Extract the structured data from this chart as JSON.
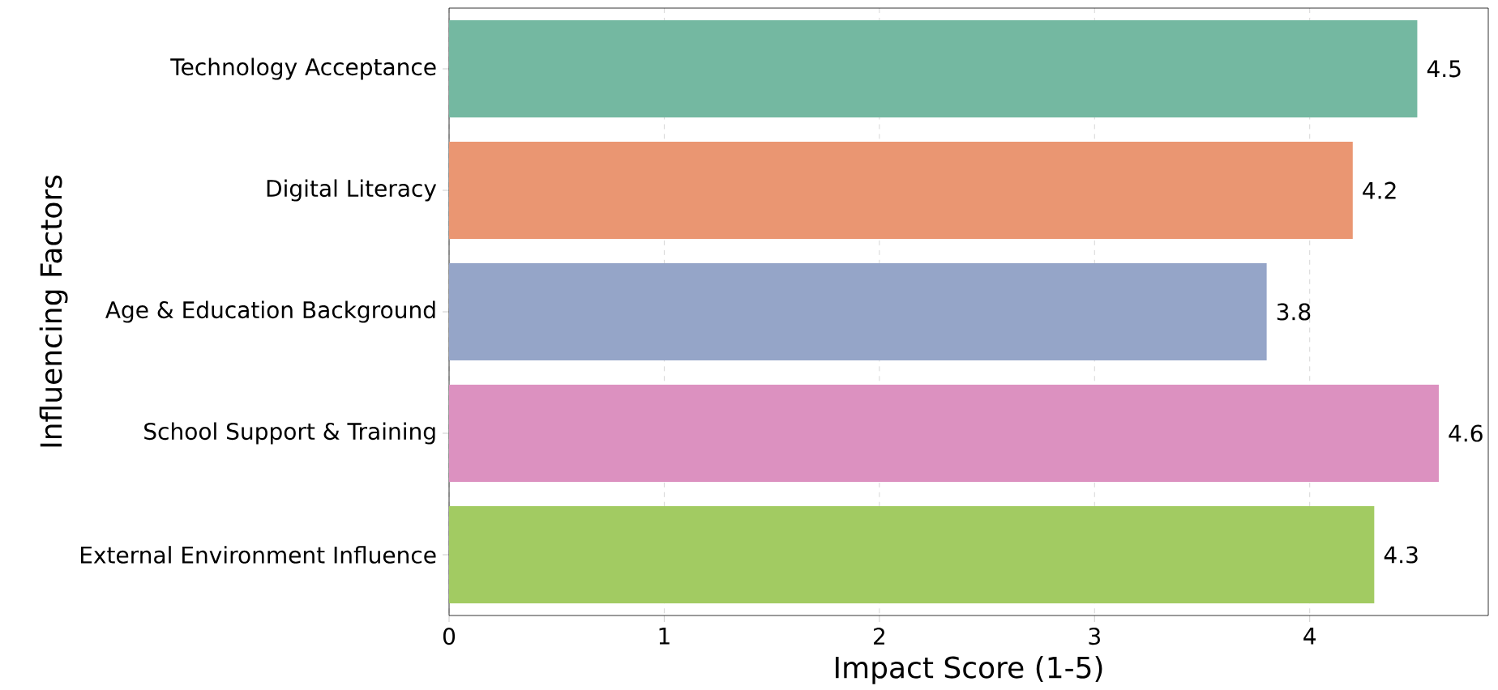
{
  "chart_data": {
    "type": "bar",
    "orientation": "horizontal",
    "xlabel": "Impact Score (1-5)",
    "ylabel": "Influencing Factors",
    "categories": [
      "Technology Acceptance",
      "Digital Literacy",
      "Age & Education Background",
      "School Support & Training",
      "External Environment Influence"
    ],
    "values": [
      4.5,
      4.2,
      3.8,
      4.6,
      4.3
    ],
    "colors": [
      "#74b8a1",
      "#ea9672",
      "#95a5c8",
      "#dc91c0",
      "#a2cb62"
    ],
    "xlim": [
      0,
      4.83
    ],
    "xticks": [
      0,
      1,
      2,
      3,
      4
    ],
    "grid": "x",
    "data_labels": true
  }
}
